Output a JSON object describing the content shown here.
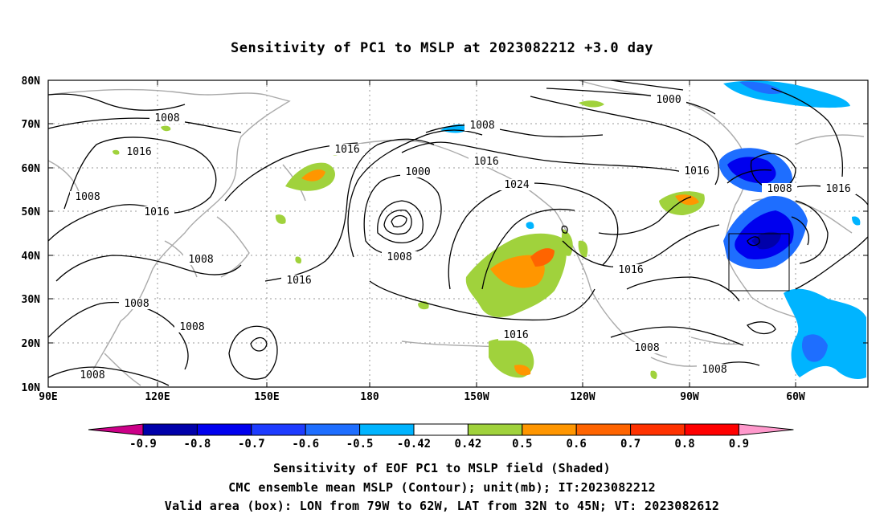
{
  "title": "Sensitivity of PC1 to MSLP at 2023082212 +3.0 day",
  "map": {
    "lat_ticks": [
      "80N",
      "70N",
      "60N",
      "50N",
      "40N",
      "30N",
      "20N",
      "10N"
    ],
    "lon_ticks": [
      "90E",
      "120E",
      "150E",
      "180",
      "150W",
      "120W",
      "90W",
      "60W"
    ],
    "contour_labels": [
      "1008",
      "1016",
      "1008",
      "1016",
      "1008",
      "1008",
      "1016",
      "1008",
      "1016",
      "1008",
      "1024",
      "1016",
      "1000",
      "1008",
      "1016",
      "1000",
      "1008",
      "1016",
      "1016",
      "1008",
      "1016",
      "1008",
      "1008",
      "1008"
    ],
    "valid_box": {
      "lon_from": "79W",
      "lon_to": "62W",
      "lat_from": "32N",
      "lat_to": "45N"
    }
  },
  "colorbar": {
    "labels": [
      "-0.9",
      "-0.8",
      "-0.7",
      "-0.6",
      "-0.5",
      "-0.42",
      "0.42",
      "0.5",
      "0.6",
      "0.7",
      "0.8",
      "0.9"
    ],
    "colors": [
      "#0000aa",
      "#0000ee",
      "#1e3cff",
      "#1e6eff",
      "#00b4ff",
      "#ffffff",
      "#a0d23c",
      "#ff9600",
      "#ff6400",
      "#ff3200",
      "#ff0000"
    ],
    "low_end_color": "#cc0088",
    "high_end_color": "#ff99cc"
  },
  "footer": {
    "line1": "Sensitivity of EOF PC1 to MSLP field (Shaded)",
    "line2": "CMC ensemble mean MSLP (Contour); unit(mb); IT:2023082212",
    "line3": "Valid area (box): LON from 79W to 62W, LAT from 32N to 45N; VT: 2023082612"
  }
}
